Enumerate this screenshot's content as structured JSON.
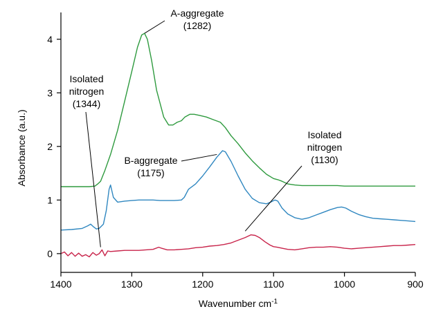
{
  "chart_data": {
    "type": "line",
    "title": "",
    "xlabel": "Wavenumber cm",
    "xlabel_superscript": "-1",
    "ylabel": "Absorbance (a.u.)",
    "xlim": [
      1400,
      900
    ],
    "ylim": [
      -0.35,
      4.5
    ],
    "x_reversed": true,
    "x_ticks": [
      1400,
      1300,
      1200,
      1100,
      1000,
      900
    ],
    "x_tick_labels": [
      "1400",
      "1300",
      "1200",
      "1100",
      "1000",
      "900"
    ],
    "y_ticks": [
      0,
      1,
      2,
      3,
      4
    ],
    "y_tick_labels": [
      "0",
      "1",
      "2",
      "3",
      "4"
    ],
    "grid": false,
    "legend": "none",
    "series": [
      {
        "color": "#2e9a3e",
        "x": [
          1400,
          1360,
          1352,
          1348,
          1344,
          1338,
          1330,
          1320,
          1310,
          1300,
          1292,
          1286,
          1282,
          1278,
          1272,
          1265,
          1255,
          1248,
          1242,
          1236,
          1230,
          1225,
          1218,
          1212,
          1205,
          1195,
          1185,
          1175,
          1168,
          1160,
          1150,
          1140,
          1130,
          1120,
          1110,
          1100,
          1094,
          1088,
          1080,
          1070,
          1060,
          1050,
          1040,
          1030,
          1020,
          1010,
          1000,
          990,
          980,
          970,
          960,
          950,
          940,
          930,
          920,
          910,
          900
        ],
        "y": [
          1.25,
          1.25,
          1.26,
          1.3,
          1.35,
          1.55,
          1.85,
          2.3,
          2.85,
          3.4,
          3.85,
          4.08,
          4.11,
          4.0,
          3.6,
          3.05,
          2.55,
          2.4,
          2.4,
          2.45,
          2.48,
          2.55,
          2.6,
          2.6,
          2.58,
          2.55,
          2.5,
          2.45,
          2.35,
          2.2,
          2.05,
          1.88,
          1.73,
          1.6,
          1.48,
          1.4,
          1.38,
          1.35,
          1.3,
          1.28,
          1.27,
          1.27,
          1.27,
          1.27,
          1.27,
          1.27,
          1.26,
          1.26,
          1.26,
          1.26,
          1.26,
          1.26,
          1.26,
          1.26,
          1.26,
          1.26,
          1.26
        ]
      },
      {
        "color": "#2f87c0",
        "x": [
          1400,
          1385,
          1370,
          1362,
          1358,
          1354,
          1350,
          1346,
          1340,
          1336,
          1332,
          1330,
          1326,
          1320,
          1310,
          1300,
          1290,
          1280,
          1270,
          1260,
          1250,
          1240,
          1230,
          1226,
          1220,
          1210,
          1200,
          1190,
          1180,
          1172,
          1168,
          1160,
          1150,
          1140,
          1130,
          1120,
          1110,
          1104,
          1098,
          1094,
          1088,
          1080,
          1070,
          1060,
          1050,
          1040,
          1030,
          1020,
          1010,
          1004,
          998,
          990,
          980,
          970,
          960,
          950,
          940,
          930,
          920,
          910,
          900
        ],
        "y": [
          0.44,
          0.45,
          0.47,
          0.52,
          0.55,
          0.5,
          0.46,
          0.47,
          0.55,
          0.8,
          1.2,
          1.28,
          1.05,
          0.96,
          0.98,
          0.99,
          1.0,
          1.0,
          1.0,
          0.99,
          0.99,
          0.99,
          1.0,
          1.05,
          1.2,
          1.3,
          1.45,
          1.62,
          1.8,
          1.92,
          1.9,
          1.72,
          1.45,
          1.2,
          1.03,
          0.95,
          0.93,
          0.96,
          1.0,
          0.98,
          0.85,
          0.74,
          0.67,
          0.64,
          0.67,
          0.72,
          0.77,
          0.82,
          0.86,
          0.87,
          0.85,
          0.79,
          0.73,
          0.69,
          0.66,
          0.65,
          0.64,
          0.63,
          0.62,
          0.61,
          0.6
        ]
      },
      {
        "color": "#c8234a",
        "x": [
          1400,
          1395,
          1390,
          1385,
          1380,
          1375,
          1370,
          1365,
          1360,
          1355,
          1350,
          1346,
          1342,
          1338,
          1334,
          1330,
          1320,
          1310,
          1300,
          1290,
          1280,
          1270,
          1262,
          1258,
          1250,
          1240,
          1230,
          1220,
          1210,
          1200,
          1190,
          1180,
          1170,
          1160,
          1150,
          1140,
          1132,
          1126,
          1120,
          1112,
          1105,
          1100,
          1095,
          1088,
          1080,
          1070,
          1060,
          1050,
          1040,
          1030,
          1020,
          1010,
          1000,
          990,
          980,
          970,
          960,
          950,
          940,
          930,
          920,
          910,
          900
        ],
        "y": [
          0.0,
          0.03,
          -0.04,
          0.02,
          -0.05,
          0.01,
          -0.05,
          -0.02,
          -0.06,
          0.02,
          -0.03,
          0.0,
          0.07,
          -0.04,
          0.05,
          0.04,
          0.05,
          0.06,
          0.06,
          0.06,
          0.07,
          0.08,
          0.12,
          0.1,
          0.07,
          0.07,
          0.08,
          0.09,
          0.11,
          0.12,
          0.14,
          0.15,
          0.17,
          0.2,
          0.25,
          0.3,
          0.35,
          0.34,
          0.3,
          0.22,
          0.16,
          0.13,
          0.12,
          0.1,
          0.08,
          0.07,
          0.09,
          0.11,
          0.12,
          0.12,
          0.13,
          0.12,
          0.1,
          0.09,
          0.1,
          0.11,
          0.12,
          0.13,
          0.14,
          0.15,
          0.15,
          0.16,
          0.17
        ]
      }
    ],
    "annotations": [
      {
        "lines": [
          "A-aggregate",
          "(1282)"
        ],
        "target": [
          1282,
          4.11
        ]
      },
      {
        "lines": [
          "B-aggregate",
          "(1175)"
        ],
        "target": [
          1180,
          1.85
        ]
      },
      {
        "lines": [
          "Isolated",
          "nitrogen",
          "(1344)"
        ],
        "target": [
          1344,
          0.12
        ]
      },
      {
        "lines": [
          "Isolated",
          "nitrogen",
          "(1130)"
        ],
        "target": [
          1140,
          0.42
        ]
      }
    ]
  }
}
